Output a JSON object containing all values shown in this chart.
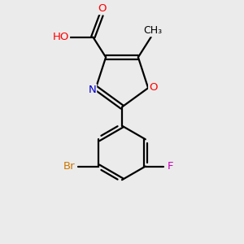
{
  "background_color": "#ebebeb",
  "atom_colors": {
    "O": "#ff0000",
    "N": "#0000cc",
    "Br": "#cc7700",
    "F": "#cc00bb",
    "H": "#4a9090",
    "C": "#000000"
  },
  "figsize": [
    3.0,
    3.0
  ],
  "dpi": 100,
  "lw": 1.6,
  "sep": 0.022,
  "fs": 9.5
}
